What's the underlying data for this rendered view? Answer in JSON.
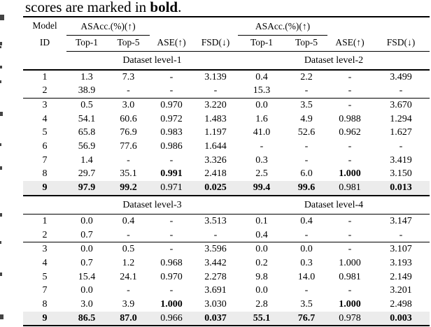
{
  "page": {
    "background": "#ffffff",
    "highlight_color": "#ececec",
    "rule_color": "#000000"
  },
  "caption": {
    "prefix": "scores are marked in ",
    "bold_word": "bold",
    "suffix": "."
  },
  "table": {
    "model_header_line1": "Model",
    "model_header_line2": "ID",
    "metric_group_header": "ASAcc.(%)(↑)",
    "sub_headers": [
      "Top-1",
      "Top-5"
    ],
    "ase_header": "ASE(↑)",
    "fsd_header": "FSD(↓)",
    "columns": [
      "top1-left",
      "top5-left",
      "ase-left",
      "fsd-left",
      "top1-right",
      "top5-right",
      "ase-right",
      "fsd-right"
    ],
    "sections": [
      {
        "left_label": "Dataset level-1",
        "right_label": "Dataset level-2",
        "groups": [
          {
            "rows": [
              {
                "id": "1",
                "cells": [
                  "1.3",
                  "7.3",
                  "-",
                  "3.139",
                  "0.4",
                  "2.2",
                  "-",
                  "3.499"
                ],
                "bold": []
              },
              {
                "id": "2",
                "cells": [
                  "38.9",
                  "-",
                  "-",
                  "-",
                  "15.3",
                  "-",
                  "-",
                  "-"
                ],
                "bold": []
              }
            ]
          },
          {
            "rows": [
              {
                "id": "3",
                "cells": [
                  "0.5",
                  "3.0",
                  "0.970",
                  "3.220",
                  "0.0",
                  "3.5",
                  "-",
                  "3.670"
                ],
                "bold": []
              },
              {
                "id": "4",
                "cells": [
                  "54.1",
                  "60.6",
                  "0.972",
                  "1.483",
                  "1.6",
                  "4.9",
                  "0.988",
                  "1.294"
                ],
                "bold": []
              },
              {
                "id": "5",
                "cells": [
                  "65.8",
                  "76.9",
                  "0.983",
                  "1.197",
                  "41.0",
                  "52.6",
                  "0.962",
                  "1.627"
                ],
                "bold": []
              },
              {
                "id": "6",
                "cells": [
                  "56.9",
                  "77.6",
                  "0.986",
                  "1.644",
                  "-",
                  "-",
                  "-",
                  "-"
                ],
                "bold": []
              },
              {
                "id": "7",
                "cells": [
                  "1.4",
                  "-",
                  "-",
                  "3.326",
                  "0.3",
                  "-",
                  "-",
                  "3.419"
                ],
                "bold": []
              },
              {
                "id": "8",
                "cells": [
                  "29.7",
                  "35.1",
                  "0.991",
                  "2.418",
                  "2.5",
                  "6.0",
                  "1.000",
                  "3.150"
                ],
                "bold": [
                  2,
                  6
                ]
              },
              {
                "id": "9",
                "cells": [
                  "97.9",
                  "99.2",
                  "0.971",
                  "0.025",
                  "99.4",
                  "99.6",
                  "0.981",
                  "0.013"
                ],
                "bold": [
                  0,
                  1,
                  3,
                  4,
                  5,
                  7
                ],
                "bold_id": true,
                "highlight": true
              }
            ]
          }
        ]
      },
      {
        "left_label": "Dataset level-3",
        "right_label": "Dataset level-4",
        "groups": [
          {
            "rows": [
              {
                "id": "1",
                "cells": [
                  "0.0",
                  "0.4",
                  "-",
                  "3.513",
                  "0.1",
                  "0.4",
                  "-",
                  "3.147"
                ],
                "bold": []
              },
              {
                "id": "2",
                "cells": [
                  "0.7",
                  "-",
                  "-",
                  "-",
                  "0.4",
                  "-",
                  "-",
                  "-"
                ],
                "bold": []
              }
            ]
          },
          {
            "rows": [
              {
                "id": "3",
                "cells": [
                  "0.0",
                  "0.5",
                  "-",
                  "3.596",
                  "0.0",
                  "0.0",
                  "-",
                  "3.107"
                ],
                "bold": []
              },
              {
                "id": "4",
                "cells": [
                  "0.7",
                  "1.2",
                  "0.968",
                  "3.442",
                  "0.2",
                  "0.3",
                  "1.000",
                  "3.193"
                ],
                "bold": []
              },
              {
                "id": "5",
                "cells": [
                  "15.4",
                  "24.1",
                  "0.970",
                  "2.278",
                  "9.8",
                  "14.0",
                  "0.981",
                  "2.149"
                ],
                "bold": []
              },
              {
                "id": "7",
                "cells": [
                  "0.0",
                  "-",
                  "-",
                  "3.691",
                  "0.0",
                  "-",
                  "-",
                  "3.201"
                ],
                "bold": []
              },
              {
                "id": "8",
                "cells": [
                  "3.0",
                  "3.9",
                  "1.000",
                  "3.030",
                  "2.8",
                  "3.5",
                  "1.000",
                  "2.498"
                ],
                "bold": [
                  2,
                  6
                ]
              },
              {
                "id": "9",
                "cells": [
                  "86.5",
                  "87.0",
                  "0.966",
                  "0.037",
                  "55.1",
                  "76.7",
                  "0.978",
                  "0.003"
                ],
                "bold": [
                  0,
                  1,
                  3,
                  4,
                  5,
                  7
                ],
                "bold_id": true,
                "highlight": true
              }
            ]
          }
        ]
      }
    ]
  }
}
